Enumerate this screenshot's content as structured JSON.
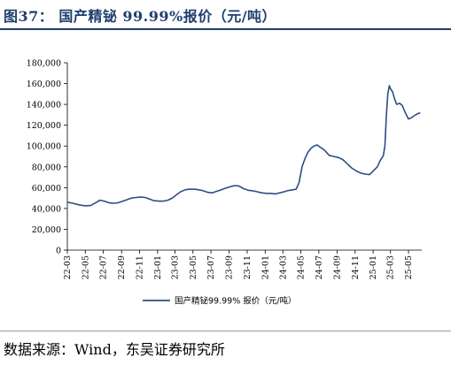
{
  "header": {
    "title": "图37：  国产精铋 99.99%报价（元/吨）"
  },
  "footer": {
    "source": "数据来源：Wind，东吴证券研究所"
  },
  "chart_data": {
    "type": "line",
    "title": "",
    "xlabel": "",
    "ylabel": "",
    "ylim": [
      0,
      180000
    ],
    "yticks": [
      0,
      20000,
      40000,
      60000,
      80000,
      100000,
      120000,
      140000,
      160000,
      180000
    ],
    "ytick_labels": [
      "0",
      "20,000",
      "40,000",
      "60,000",
      "80,000",
      "100,000",
      "120,000",
      "140,000",
      "160,000",
      "180,000"
    ],
    "x_tick_labels": [
      "22-03",
      "22-05",
      "22-07",
      "22-09",
      "22-11",
      "23-01",
      "23-03",
      "23-05",
      "23-07",
      "23-09",
      "23-11",
      "24-01",
      "24-03",
      "24-05",
      "24-07",
      "24-09",
      "24-11",
      "25-01",
      "25-03",
      "25-05"
    ],
    "x_range": [
      "2022-03-01",
      "2025-06-15"
    ],
    "grid": false,
    "legend_position": "bottom",
    "line_color": "#2b4f83",
    "series": [
      {
        "name": "国产精铋99.99% 报价（元/吨）",
        "x": [
          "2022-03-01",
          "2022-03-20",
          "2022-04-10",
          "2022-05-01",
          "2022-05-20",
          "2022-06-05",
          "2022-06-20",
          "2022-07-05",
          "2022-07-20",
          "2022-08-05",
          "2022-08-20",
          "2022-09-05",
          "2022-09-20",
          "2022-10-05",
          "2022-10-20",
          "2022-11-05",
          "2022-11-20",
          "2022-12-05",
          "2022-12-20",
          "2023-01-05",
          "2023-01-20",
          "2023-02-05",
          "2023-02-20",
          "2023-03-05",
          "2023-03-20",
          "2023-04-05",
          "2023-04-20",
          "2023-05-05",
          "2023-05-20",
          "2023-06-05",
          "2023-06-20",
          "2023-07-05",
          "2023-07-20",
          "2023-08-05",
          "2023-08-20",
          "2023-09-05",
          "2023-09-20",
          "2023-10-05",
          "2023-10-20",
          "2023-11-05",
          "2023-11-20",
          "2023-12-05",
          "2023-12-20",
          "2024-01-05",
          "2024-01-20",
          "2024-02-05",
          "2024-02-20",
          "2024-03-05",
          "2024-03-15",
          "2024-03-25",
          "2024-04-05",
          "2024-04-15",
          "2024-04-25",
          "2024-05-05",
          "2024-05-15",
          "2024-05-25",
          "2024-06-05",
          "2024-06-15",
          "2024-06-25",
          "2024-07-05",
          "2024-07-20",
          "2024-08-05",
          "2024-08-20",
          "2024-09-05",
          "2024-09-20",
          "2024-10-05",
          "2024-10-20",
          "2024-11-05",
          "2024-11-20",
          "2024-12-05",
          "2024-12-20",
          "2025-01-05",
          "2025-01-15",
          "2025-01-25",
          "2025-02-01",
          "2025-02-05",
          "2025-02-10",
          "2025-02-15",
          "2025-02-20",
          "2025-02-25",
          "2025-03-01",
          "2025-03-08",
          "2025-03-15",
          "2025-03-22",
          "2025-04-01",
          "2025-04-10",
          "2025-04-20",
          "2025-05-01",
          "2025-05-10",
          "2025-05-20",
          "2025-06-01",
          "2025-06-10"
        ],
        "y": [
          46000,
          45000,
          43500,
          42500,
          43000,
          45500,
          48000,
          47000,
          45500,
          45000,
          45500,
          47000,
          48500,
          50000,
          50500,
          51000,
          50500,
          49000,
          47500,
          47000,
          47000,
          48000,
          50000,
          53000,
          56000,
          58000,
          58500,
          58500,
          58000,
          57000,
          55500,
          55000,
          56500,
          58000,
          59500,
          61000,
          62000,
          61500,
          59000,
          57500,
          57000,
          56000,
          55000,
          54500,
          54500,
          54000,
          55000,
          56000,
          57000,
          57500,
          58000,
          58500,
          65000,
          80000,
          88000,
          94000,
          98000,
          100000,
          101000,
          99000,
          96000,
          91000,
          90000,
          89000,
          87000,
          83000,
          79000,
          76000,
          74000,
          73000,
          72500,
          77000,
          80000,
          86000,
          89000,
          91000,
          100000,
          130000,
          150000,
          158000,
          155000,
          152000,
          145000,
          140000,
          141000,
          139000,
          132000,
          126000,
          127000,
          129000,
          131000,
          132000
        ]
      }
    ]
  }
}
